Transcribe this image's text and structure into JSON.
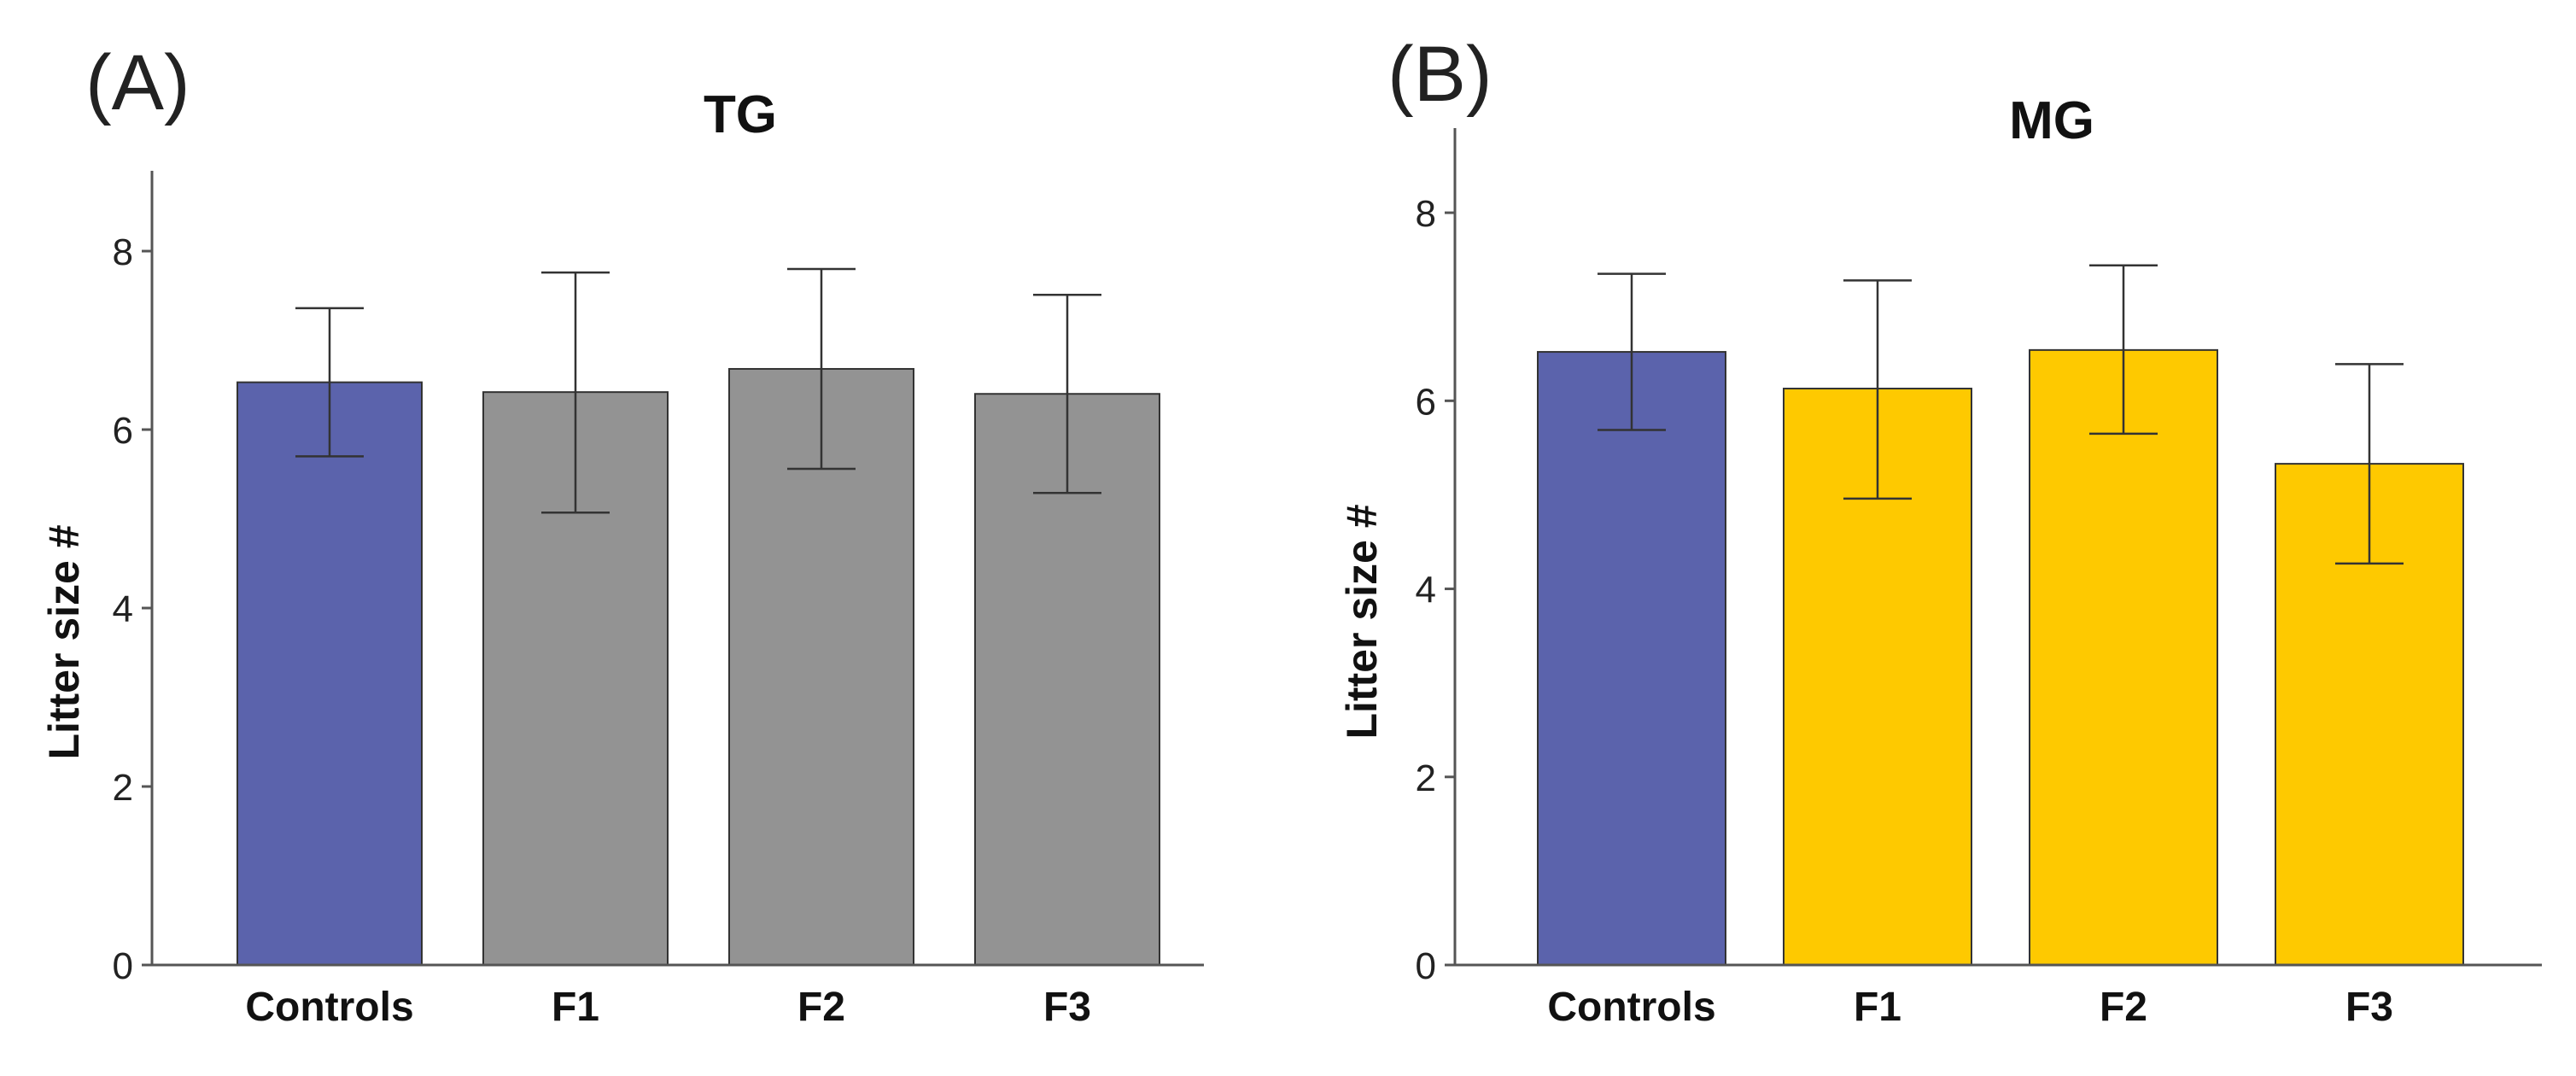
{
  "chart_data": [
    {
      "type": "bar",
      "panel_label": "(A)",
      "title": "TG",
      "xlabel": "",
      "ylabel": "Litter size #",
      "ylim": [
        0,
        8.9
      ],
      "yticks": [
        "0",
        "2",
        "4",
        "6",
        "8"
      ],
      "grid": false,
      "categories": [
        "Controls",
        "F1",
        "F2",
        "F3"
      ],
      "values": [
        6.53,
        6.42,
        6.68,
        6.4
      ],
      "error_low": [
        5.7,
        5.07,
        5.56,
        5.29
      ],
      "error_high": [
        7.36,
        7.76,
        7.8,
        7.51
      ],
      "colors": [
        "#5b63ac",
        "#939393",
        "#939393",
        "#939393"
      ]
    },
    {
      "type": "bar",
      "panel_label": "(B)",
      "title": "MG",
      "xlabel": "",
      "ylabel": "Litter size #",
      "ylim": [
        0,
        8.9
      ],
      "yticks": [
        "0",
        "2",
        "4",
        "6",
        "8"
      ],
      "grid": false,
      "categories": [
        "Controls",
        "F1",
        "F2",
        "F3"
      ],
      "values": [
        6.52,
        6.13,
        6.54,
        5.33
      ],
      "error_low": [
        5.69,
        4.96,
        5.65,
        4.27
      ],
      "error_high": [
        7.35,
        7.28,
        7.44,
        6.39
      ],
      "colors": [
        "#5b63ac",
        "#fec900",
        "#fec900",
        "#fec900"
      ]
    }
  ]
}
